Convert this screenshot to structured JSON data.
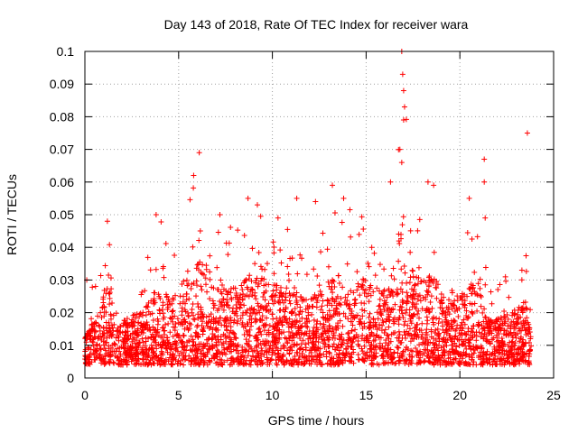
{
  "chart_data": {
    "type": "scatter",
    "title": "Day 143 of 2018, Rate Of TEC Index for receiver wara",
    "xlabel": "GPS time / hours",
    "ylabel": "ROTI / TECUs",
    "xlim": [
      0,
      25
    ],
    "ylim": [
      0,
      0.1
    ],
    "xticks": [
      0,
      5,
      10,
      15,
      20,
      25
    ],
    "xtick_labels": [
      "0",
      "5",
      "10",
      "15",
      "20",
      "25"
    ],
    "yticks": [
      0,
      0.01,
      0.02,
      0.03,
      0.04,
      0.05,
      0.06,
      0.07,
      0.08,
      0.09,
      0.1
    ],
    "ytick_labels": [
      "0",
      "0.01",
      "0.02",
      "0.03",
      "0.04",
      "0.05",
      "0.06",
      "0.07",
      "0.08",
      "0.09",
      "0.1"
    ],
    "grid": true,
    "marker": "+",
    "marker_color": "#ff0000",
    "series": [
      {
        "name": "ROTI",
        "envelope": {
          "x": [
            0,
            0.5,
            1.0,
            1.2,
            2,
            3,
            4,
            5,
            5.5,
            6,
            7,
            8,
            9,
            10,
            11,
            12,
            13,
            14,
            15,
            16,
            16.5,
            17,
            17.5,
            18,
            18.5,
            19,
            20,
            21,
            21.5,
            22,
            23,
            23.5,
            23.8
          ],
          "upper": [
            0.02,
            0.03,
            0.045,
            0.048,
            0.03,
            0.035,
            0.05,
            0.045,
            0.055,
            0.065,
            0.05,
            0.045,
            0.055,
            0.05,
            0.045,
            0.04,
            0.05,
            0.055,
            0.05,
            0.045,
            0.06,
            0.09,
            0.055,
            0.05,
            0.055,
            0.045,
            0.045,
            0.05,
            0.03,
            0.03,
            0.035,
            0.04,
            0.02
          ],
          "core": [
            0.012,
            0.015,
            0.017,
            0.017,
            0.013,
            0.015,
            0.017,
            0.018,
            0.02,
            0.022,
            0.018,
            0.02,
            0.02,
            0.019,
            0.018,
            0.017,
            0.019,
            0.021,
            0.02,
            0.02,
            0.022,
            0.025,
            0.022,
            0.022,
            0.02,
            0.019,
            0.017,
            0.018,
            0.015,
            0.015,
            0.016,
            0.017,
            0.012
          ],
          "floor": 0.004
        },
        "outliers": [
          {
            "x": 0.1,
            "y": 0.03
          },
          {
            "x": 1.2,
            "y": 0.048
          },
          {
            "x": 3.8,
            "y": 0.05
          },
          {
            "x": 5.8,
            "y": 0.062
          },
          {
            "x": 6.1,
            "y": 0.069
          },
          {
            "x": 7.2,
            "y": 0.05
          },
          {
            "x": 8.7,
            "y": 0.055
          },
          {
            "x": 9.2,
            "y": 0.053
          },
          {
            "x": 10.3,
            "y": 0.049
          },
          {
            "x": 11.3,
            "y": 0.055
          },
          {
            "x": 12.3,
            "y": 0.054
          },
          {
            "x": 13.2,
            "y": 0.059
          },
          {
            "x": 13.8,
            "y": 0.055
          },
          {
            "x": 16.3,
            "y": 0.06
          },
          {
            "x": 16.9,
            "y": 0.1
          },
          {
            "x": 16.95,
            "y": 0.093
          },
          {
            "x": 17.0,
            "y": 0.088
          },
          {
            "x": 17.05,
            "y": 0.083
          },
          {
            "x": 17.0,
            "y": 0.079
          },
          {
            "x": 16.8,
            "y": 0.07
          },
          {
            "x": 16.9,
            "y": 0.066
          },
          {
            "x": 18.3,
            "y": 0.06
          },
          {
            "x": 18.6,
            "y": 0.059
          },
          {
            "x": 20.5,
            "y": 0.055
          },
          {
            "x": 21.3,
            "y": 0.067
          },
          {
            "x": 21.3,
            "y": 0.06
          },
          {
            "x": 21.35,
            "y": 0.049
          },
          {
            "x": 23.6,
            "y": 0.075
          }
        ]
      }
    ]
  }
}
